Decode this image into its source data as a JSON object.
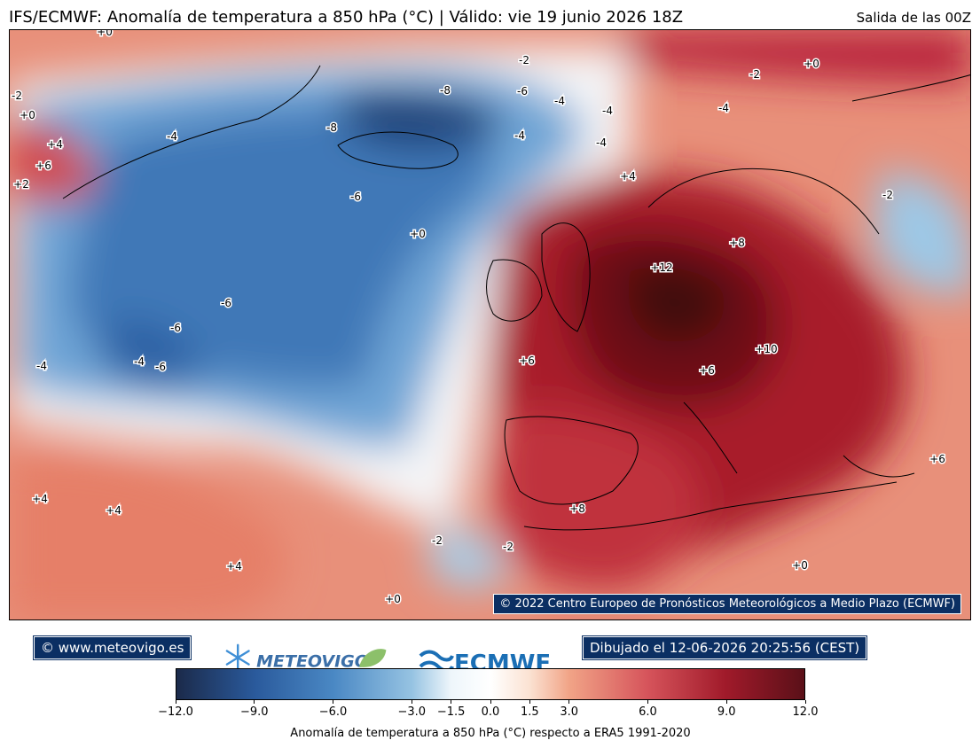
{
  "header": {
    "title": "IFS/ECMWF: Anomalía de temperatura a 850 hPa (°C) | Válido: vie 19 junio 2026 18Z",
    "run": "Salida de las 00Z"
  },
  "map": {
    "copyright": "© 2022 Centro Europeo de Pronósticos Meteorológicos a Medio Plazo (ECMWF)",
    "contour_labels": [
      "+0",
      "-2",
      "-2",
      "-2",
      "-2",
      "-2",
      "-2",
      "-4",
      "-4",
      "-4",
      "-4",
      "-4",
      "-4",
      "-4",
      "-4",
      "-6",
      "-6",
      "-6",
      "-6",
      "-6",
      "-8",
      "-8",
      "+0",
      "+0",
      "+0",
      "+0",
      "+0",
      "+2",
      "+4",
      "+4",
      "+4",
      "+4",
      "+4",
      "+6",
      "+6",
      "+6",
      "+6",
      "+8",
      "+8",
      "+10",
      "+12"
    ]
  },
  "footer": {
    "website": "© www.meteovigo.es",
    "drawn": "Dibujado el 12-06-2026 20:25:56 (CEST)",
    "logo_meteovigo": "METEOVIGO",
    "logo_ecmwf": "ECMWF"
  },
  "colorbar": {
    "label": "Anomalía de temperatura a 850 hPa (°C) respecto a ERA5 1991-2020",
    "min": -12.0,
    "max": 12.0,
    "ticks": [
      "−12.0",
      "−9.0",
      "−6.0",
      "−3.0",
      "−1.5",
      "0.0",
      "1.5",
      "3.0",
      "6.0",
      "9.0",
      "12.0"
    ],
    "tick_values": [
      -12,
      -9,
      -6,
      -3,
      -1.5,
      0,
      1.5,
      3,
      6,
      9,
      12
    ],
    "colors": [
      "#1b2a4a",
      "#2a5a9c",
      "#4a88c4",
      "#96c3e2",
      "#eef6fb",
      "#ffffff",
      "#fbe2d2",
      "#f1a487",
      "#d6545b",
      "#a01a2a",
      "#5a1018"
    ]
  }
}
